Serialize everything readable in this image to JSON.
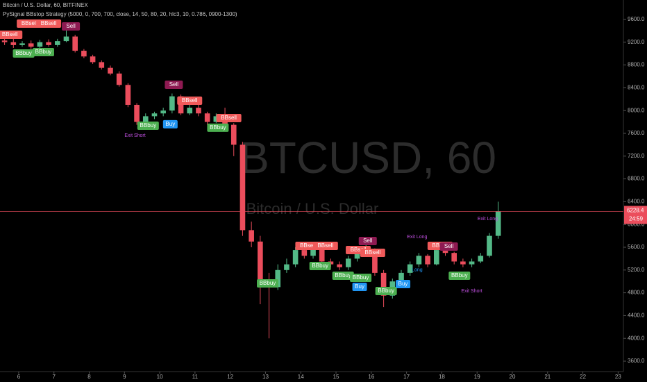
{
  "chart_data": {
    "type": "candlestick",
    "title": "Bitcoin / U.S. Dollar, 60, BITFINEX",
    "subtitle": "PySignal BBstop Strategy  (5000, 0, 700, 700, close, 14, 50, 80, 20, hlc3, 10, 0.786, 0900-1300)",
    "watermark": "BTCUSD, 60",
    "watermark_subtitle": "Bitcoin / U.S. Dollar",
    "countdown": "24:59",
    "up_color": "#53b987",
    "down_color": "#eb4d5c",
    "x": [
      5.6,
      5.85,
      6.1,
      6.35,
      6.6,
      6.85,
      7.1,
      7.35,
      7.6,
      7.85,
      8.1,
      8.35,
      8.6,
      8.85,
      9.1,
      9.35,
      9.6,
      9.85,
      10.1,
      10.35,
      10.6,
      10.85,
      11.1,
      11.35,
      11.6,
      11.85,
      12.1,
      12.35,
      12.6,
      12.85,
      13.1,
      13.35,
      13.6,
      13.85,
      14.1,
      14.35,
      14.6,
      14.85,
      15.1,
      15.35,
      15.6,
      15.85,
      16.1,
      16.35,
      16.6,
      16.85,
      17.1,
      17.35,
      17.6,
      17.85,
      18.1,
      18.35,
      18.6,
      18.85,
      19.1,
      19.35,
      19.6
    ],
    "open": [
      9230,
      9200,
      9150,
      9180,
      9120,
      9200,
      9150,
      9220,
      9300,
      9050,
      8950,
      8850,
      8750,
      8650,
      8450,
      8100,
      7800,
      7900,
      7950,
      8000,
      8250,
      7950,
      8050,
      7950,
      7800,
      7900,
      7750,
      7400,
      5900,
      5700,
      5000,
      4900,
      5200,
      5300,
      5550,
      5450,
      5600,
      5350,
      5300,
      5250,
      5400,
      5500,
      5550,
      5150,
      4750,
      5000,
      5150,
      5300,
      5450,
      5300,
      5550,
      5500,
      5350,
      5300,
      5350,
      5450,
      5800
    ],
    "high": [
      9280,
      9260,
      9220,
      9230,
      9240,
      9250,
      9260,
      9420,
      9330,
      9080,
      8980,
      8880,
      8790,
      8690,
      8480,
      8130,
      7950,
      7980,
      8050,
      8300,
      8280,
      8100,
      8100,
      7980,
      7950,
      8050,
      7780,
      7450,
      6050,
      5800,
      5150,
      5300,
      5400,
      5600,
      5620,
      5650,
      5650,
      5400,
      5350,
      5450,
      5550,
      5650,
      5580,
      5200,
      5050,
      5200,
      5350,
      5500,
      5480,
      5600,
      5600,
      5520,
      5400,
      5400,
      5500,
      5850,
      6400
    ],
    "low": [
      9150,
      9100,
      9120,
      9080,
      9100,
      9120,
      9120,
      9200,
      9020,
      8920,
      8820,
      8720,
      8620,
      8420,
      8060,
      7750,
      7750,
      7850,
      7900,
      7950,
      7920,
      7920,
      7900,
      7750,
      7780,
      7700,
      7200,
      5800,
      5600,
      4600,
      4000,
      4850,
      5150,
      5250,
      5400,
      5400,
      5300,
      5250,
      5200,
      5200,
      5350,
      5450,
      5100,
      4550,
      4700,
      4950,
      5100,
      5250,
      5250,
      5280,
      5450,
      5300,
      5250,
      5250,
      5320,
      5420,
      5750
    ],
    "close": [
      9200,
      9150,
      9180,
      9120,
      9200,
      9150,
      9220,
      9300,
      9050,
      8950,
      8850,
      8750,
      8650,
      8450,
      8100,
      7800,
      7900,
      7950,
      8000,
      8250,
      7950,
      8050,
      7950,
      7800,
      7900,
      7750,
      7400,
      5900,
      5700,
      5000,
      4900,
      5200,
      5300,
      5550,
      5450,
      5600,
      5350,
      5300,
      5250,
      5400,
      5500,
      5550,
      5150,
      4750,
      5000,
      5150,
      5300,
      5450,
      5300,
      5550,
      5500,
      5350,
      5300,
      5350,
      5450,
      5800,
      6228.4
    ],
    "xlim": [
      5.47,
      23.15
    ],
    "xticks": [
      6,
      7,
      8,
      9,
      10,
      11,
      12,
      13,
      14,
      15,
      16,
      17,
      18,
      19,
      20,
      21,
      22,
      23
    ],
    "ylim": [
      3417,
      9941
    ],
    "yticks": [
      {
        "value": 3600,
        "label": "3600.0"
      },
      {
        "value": 4000,
        "label": "4000.0"
      },
      {
        "value": 4400,
        "label": "4400.0"
      },
      {
        "value": 4800,
        "label": "4800.0"
      },
      {
        "value": 5200,
        "label": "5200.0"
      },
      {
        "value": 5600,
        "label": "5600.0"
      },
      {
        "value": 6000,
        "label": "6000.0"
      },
      {
        "value": 6400,
        "label": "6400.0"
      },
      {
        "value": 6800,
        "label": "6800.0"
      },
      {
        "value": 7200,
        "label": "7200.0"
      },
      {
        "value": 7600,
        "label": "7600.0"
      },
      {
        "value": 8000,
        "label": "8000.0"
      },
      {
        "value": 8400,
        "label": "8400.0"
      },
      {
        "value": 8800,
        "label": "8800.0"
      },
      {
        "value": 9200,
        "label": "9200.0"
      },
      {
        "value": 9600,
        "label": "9600.0"
      }
    ],
    "grid": false,
    "signals": [
      {
        "label": "BBsell",
        "x": 5.75,
        "price": 9332,
        "color": "#f05a5a"
      },
      {
        "label": "BBsell",
        "x": 6.3,
        "price": 9527,
        "color": "#f05a5a"
      },
      {
        "label": "BBsell",
        "x": 6.85,
        "price": 9527,
        "color": "#f05a5a"
      },
      {
        "label": "Sell",
        "x": 7.48,
        "price": 9478,
        "color": "#8e1a52"
      },
      {
        "label": "BBbuy",
        "x": 6.14,
        "price": 9002,
        "color": "#4caf50"
      },
      {
        "label": "BBbuy",
        "x": 6.7,
        "price": 9027,
        "color": "#4caf50"
      },
      {
        "label": "Sell",
        "x": 10.4,
        "price": 8454,
        "color": "#8e1a52"
      },
      {
        "label": "BBsell",
        "x": 10.85,
        "price": 8173,
        "color": "#f05a5a"
      },
      {
        "label": "BBsell",
        "x": 11.96,
        "price": 7868,
        "color": "#f05a5a"
      },
      {
        "label": "Buy",
        "x": 10.3,
        "price": 7759,
        "color": "#2196f3"
      },
      {
        "label": "BBbuy",
        "x": 9.67,
        "price": 7734,
        "color": "#4caf50"
      },
      {
        "label": "BBbuy",
        "x": 11.65,
        "price": 7698,
        "color": "#4caf50"
      },
      {
        "label": "BBbuy",
        "x": 13.06,
        "price": 4966,
        "color": "#4caf50"
      },
      {
        "label": "BBsell",
        "x": 14.2,
        "price": 5624,
        "color": "#f05a5a"
      },
      {
        "label": "BBsell",
        "x": 14.7,
        "price": 5624,
        "color": "#f05a5a"
      },
      {
        "label": "BBbuy",
        "x": 14.55,
        "price": 5271,
        "color": "#4caf50"
      },
      {
        "label": "BBbuy",
        "x": 15.2,
        "price": 5100,
        "color": "#4caf50"
      },
      {
        "label": "BBbuy",
        "x": 15.7,
        "price": 5063,
        "color": "#4caf50"
      },
      {
        "label": "Buy",
        "x": 15.67,
        "price": 4905,
        "color": "#2196f3"
      },
      {
        "label": "BBsell",
        "x": 15.63,
        "price": 5551,
        "color": "#f05a5a"
      },
      {
        "label": "Sell",
        "x": 15.9,
        "price": 5710,
        "color": "#8e1a52"
      },
      {
        "label": "BBsell",
        "x": 16.04,
        "price": 5502,
        "color": "#f05a5a"
      },
      {
        "label": "BBbuy",
        "x": 16.42,
        "price": 4832,
        "color": "#4caf50"
      },
      {
        "label": "Buy",
        "x": 16.9,
        "price": 4954,
        "color": "#2196f3"
      },
      {
        "label": "BBsell",
        "x": 17.95,
        "price": 5624,
        "color": "#f05a5a"
      },
      {
        "label": "Sell",
        "x": 18.2,
        "price": 5612,
        "color": "#8e1a52"
      },
      {
        "label": "BBbuy",
        "x": 18.5,
        "price": 5100,
        "color": "#4caf50"
      }
    ],
    "notes": [
      {
        "label": "Exit Short",
        "x": 9.3,
        "price": 7560,
        "color": "#c050e0"
      },
      {
        "label": "Exit Long",
        "x": 17.3,
        "price": 5780,
        "color": "#c050e0"
      },
      {
        "label": "Long",
        "x": 17.3,
        "price": 5200,
        "color": "#2196f3"
      },
      {
        "label": "Exit Short",
        "x": 18.85,
        "price": 4830,
        "color": "#c050e0"
      },
      {
        "label": "Exit Long",
        "x": 19.3,
        "price": 6100,
        "color": "#c050e0"
      }
    ]
  }
}
